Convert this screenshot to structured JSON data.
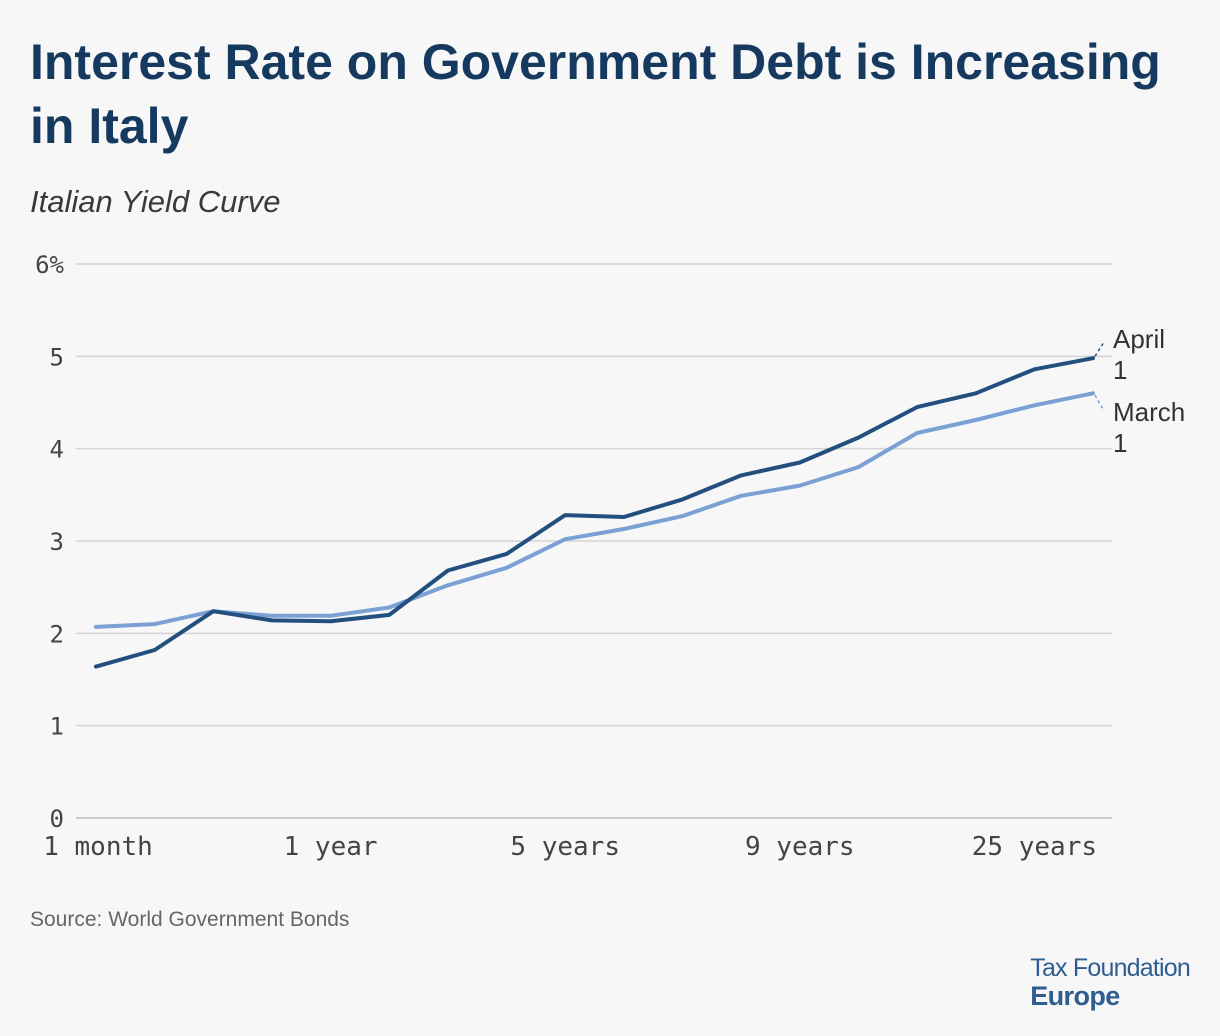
{
  "title": "Interest Rate on Government Debt is Increasing in Italy",
  "subtitle": "Italian Yield Curve",
  "source": "Source: World Government Bonds",
  "brand": {
    "line1": "Tax Foundation",
    "line2": "Europe"
  },
  "colors": {
    "april": "#234f7e",
    "march": "#7aa0d4",
    "grid": "#d4d4d4",
    "axis_text": "#444444",
    "background": "#f7f7f8"
  },
  "chart_data": {
    "type": "line",
    "title": "Italian Yield Curve",
    "xlabel": "",
    "ylabel": "",
    "ylim": [
      0,
      6
    ],
    "y_ticks": [
      {
        "value": 0,
        "label": "0"
      },
      {
        "value": 1,
        "label": "1"
      },
      {
        "value": 2,
        "label": "2"
      },
      {
        "value": 3,
        "label": "3"
      },
      {
        "value": 4,
        "label": "4"
      },
      {
        "value": 5,
        "label": "5"
      },
      {
        "value": 6,
        "label": "6%"
      }
    ],
    "x_tick_labels": [
      {
        "index": 0,
        "label": "1 month"
      },
      {
        "index": 4,
        "label": "1 year"
      },
      {
        "index": 8,
        "label": "5 years"
      },
      {
        "index": 12,
        "label": "9 years"
      },
      {
        "index": 16,
        "label": "25 years"
      }
    ],
    "point_count": 18,
    "grid": true,
    "legend": "direct labels at right end of lines",
    "series": [
      {
        "name": "April 1",
        "label_lines": [
          "April",
          "1"
        ],
        "values": [
          1.64,
          1.82,
          2.24,
          2.14,
          2.13,
          2.2,
          2.68,
          2.86,
          3.28,
          3.26,
          3.45,
          3.71,
          3.85,
          4.12,
          4.45,
          4.6,
          4.86,
          4.98
        ]
      },
      {
        "name": "March 1",
        "label_lines": [
          "March",
          "1"
        ],
        "values": [
          2.07,
          2.1,
          2.24,
          2.19,
          2.19,
          2.28,
          2.52,
          2.71,
          3.02,
          3.13,
          3.27,
          3.49,
          3.6,
          3.8,
          4.17,
          4.31,
          4.47,
          4.6
        ]
      }
    ]
  }
}
